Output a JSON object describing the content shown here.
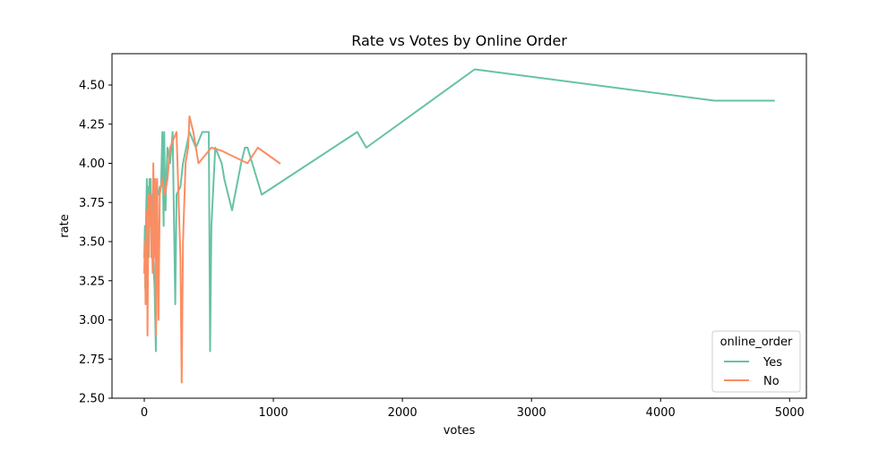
{
  "chart_data": {
    "type": "line",
    "title": "Rate vs Votes by Online Order",
    "xlabel": "votes",
    "ylabel": "rate",
    "xlim": [
      -250,
      5130
    ],
    "ylim": [
      2.5,
      4.7
    ],
    "xticks": [
      0,
      1000,
      2000,
      3000,
      4000,
      5000
    ],
    "xtick_labels": [
      "0",
      "1000",
      "2000",
      "3000",
      "4000",
      "5000"
    ],
    "yticks": [
      2.5,
      2.75,
      3.0,
      3.25,
      3.5,
      3.75,
      4.0,
      4.25,
      4.5
    ],
    "ytick_labels": [
      "2.50",
      "2.75",
      "3.00",
      "3.25",
      "3.50",
      "3.75",
      "4.00",
      "4.25",
      "4.50"
    ],
    "grid": false,
    "legend": {
      "title": "online_order",
      "placement": "lower-right"
    },
    "series": [
      {
        "name": "Yes",
        "color": "#66c2a5",
        "x": [
          0,
          5,
          8,
          12,
          15,
          20,
          25,
          30,
          35,
          40,
          45,
          50,
          55,
          60,
          70,
          80,
          90,
          100,
          110,
          120,
          130,
          140,
          150,
          155,
          160,
          165,
          170,
          180,
          200,
          220,
          240,
          250,
          280,
          300,
          350,
          400,
          450,
          500,
          510,
          520,
          550,
          600,
          620,
          680,
          750,
          780,
          800,
          910,
          1650,
          1720,
          2560,
          4420,
          4880
        ],
        "y": [
          3.4,
          3.6,
          3.2,
          3.5,
          3.7,
          3.9,
          3.6,
          3.85,
          3.4,
          3.9,
          3.6,
          3.9,
          3.5,
          3.8,
          3.4,
          3.2,
          2.8,
          3.8,
          3.8,
          3.85,
          3.85,
          4.2,
          3.6,
          4.2,
          3.8,
          3.7,
          3.9,
          4.1,
          4.0,
          4.2,
          3.1,
          3.8,
          3.85,
          4.0,
          4.2,
          4.1,
          4.2,
          4.2,
          2.8,
          3.6,
          4.1,
          4.0,
          3.9,
          3.7,
          4.0,
          4.1,
          4.1,
          3.8,
          4.2,
          4.1,
          4.6,
          4.4,
          4.4
        ]
      },
      {
        "name": "No",
        "color": "#fc8d62",
        "x": [
          0,
          5,
          10,
          15,
          20,
          25,
          30,
          35,
          40,
          45,
          50,
          55,
          60,
          65,
          70,
          75,
          80,
          85,
          90,
          95,
          100,
          110,
          120,
          140,
          160,
          180,
          200,
          250,
          280,
          290,
          300,
          320,
          340,
          350,
          380,
          420,
          520,
          600,
          800,
          880,
          1050
        ],
        "y": [
          3.3,
          3.5,
          3.1,
          3.2,
          3.7,
          2.9,
          3.5,
          3.8,
          3.6,
          3.6,
          3.8,
          3.4,
          3.5,
          3.3,
          4.0,
          3.7,
          3.4,
          3.9,
          2.9,
          3.6,
          3.9,
          3.0,
          3.8,
          3.9,
          3.8,
          3.9,
          4.1,
          4.2,
          3.4,
          2.6,
          3.5,
          4.0,
          4.1,
          4.3,
          4.2,
          4.0,
          4.1,
          4.08,
          4.0,
          4.1,
          4.0
        ]
      }
    ]
  }
}
